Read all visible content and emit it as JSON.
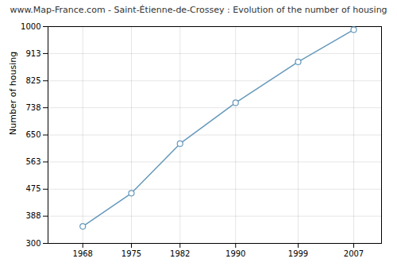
{
  "chart_data": {
    "type": "line",
    "title": "www.Map-France.com - Saint-Étienne-de-Crossey : Evolution of the number of housing",
    "ylabel": "Number of housing",
    "x": [
      1968,
      1975,
      1982,
      1990,
      1999,
      2007
    ],
    "values": [
      355,
      462,
      622,
      754,
      886,
      990
    ],
    "color": "#6699bb",
    "marker": "circle",
    "xlim": [
      1963,
      2011
    ],
    "xticks": [
      1968,
      1975,
      1982,
      1990,
      1999,
      2007
    ],
    "ylim": [
      300,
      1000
    ],
    "yticks": [
      300,
      388,
      475,
      563,
      650,
      738,
      825,
      913,
      1000
    ],
    "grid": true
  }
}
